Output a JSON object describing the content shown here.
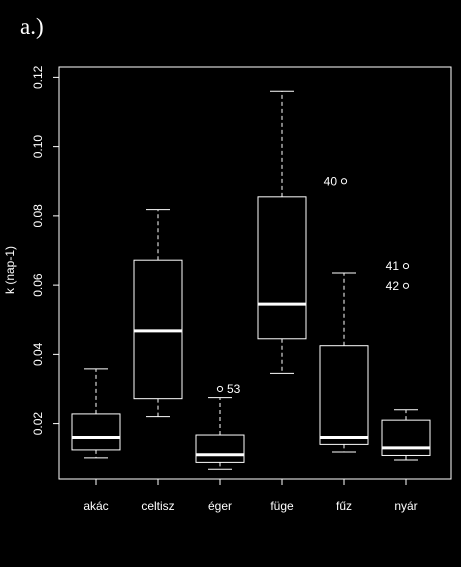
{
  "panel_label": "a.)",
  "chart_data": {
    "type": "box",
    "ylabel": "k (nap-1)",
    "ylim": [
      0.004,
      0.123
    ],
    "yticks": [
      0.02,
      0.04,
      0.06,
      0.08,
      0.1,
      0.12
    ],
    "ytick_labels": [
      "0.02",
      "0.04",
      "0.06",
      "0.08",
      "0.10",
      "0.12"
    ],
    "grid": false,
    "categories": [
      "akác",
      "celtisz",
      "éger",
      "füge",
      "fűz",
      "nyár"
    ],
    "boxes": [
      {
        "whisker_low": 0.0101,
        "q1": 0.0124,
        "median": 0.016,
        "q3": 0.0228,
        "whisker_high": 0.0358,
        "outliers": []
      },
      {
        "whisker_low": 0.022,
        "q1": 0.0272,
        "median": 0.0468,
        "q3": 0.0672,
        "whisker_high": 0.0818,
        "outliers": []
      },
      {
        "whisker_low": 0.0068,
        "q1": 0.0088,
        "median": 0.011,
        "q3": 0.0167,
        "whisker_high": 0.0275,
        "outliers": [
          {
            "value": 0.03,
            "label": "53"
          }
        ]
      },
      {
        "whisker_low": 0.0345,
        "q1": 0.0445,
        "median": 0.0545,
        "q3": 0.0855,
        "whisker_high": 0.116,
        "outliers": []
      },
      {
        "whisker_low": 0.0118,
        "q1": 0.014,
        "median": 0.016,
        "q3": 0.0425,
        "whisker_high": 0.0635,
        "outliers": [
          {
            "value": 0.09,
            "label": "40"
          }
        ]
      },
      {
        "whisker_low": 0.0095,
        "q1": 0.0108,
        "median": 0.013,
        "q3": 0.021,
        "whisker_high": 0.024,
        "outliers": [
          {
            "value": 0.0655,
            "label": "41"
          },
          {
            "value": 0.0598,
            "label": "42"
          }
        ]
      }
    ]
  }
}
